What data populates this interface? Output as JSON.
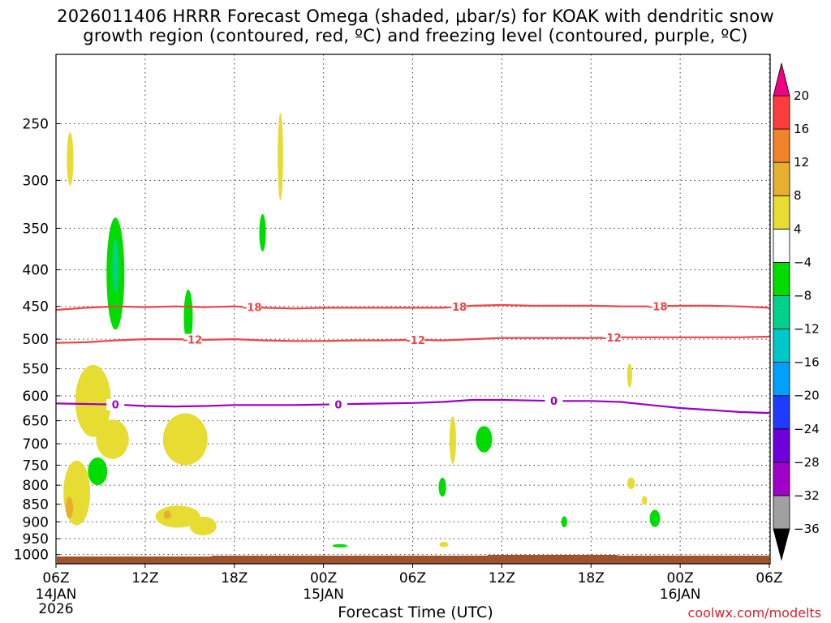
{
  "title_line1": "2026011406 HRRR Forecast Omega (shaded, μbar/s) for KOAK with dendritic snow",
  "title_line2": "growth region (contoured, red, ºC) and freezing level (contoured, purple, ºC)",
  "credit": "coolwx.com/modelts",
  "chart_data": {
    "type": "heatmap",
    "title": "2026011406 HRRR Forecast Omega (shaded, μbar/s) for KOAK with dendritic snow growth region (contoured, red, ºC) and freezing level (contoured, purple, ºC)",
    "xlabel": "Forecast Time (UTC)",
    "ylabel": "",
    "x_unit": "hours since 2026-01-14 06Z",
    "xlim": [
      0,
      48
    ],
    "ylim": [
      1030,
      200
    ],
    "y_scale": "log",
    "grid": true,
    "x_ticks": [
      {
        "x": 0,
        "label": "06Z",
        "sub1": "14JAN",
        "sub2": "2026"
      },
      {
        "x": 6,
        "label": "12Z",
        "sub1": "",
        "sub2": ""
      },
      {
        "x": 12,
        "label": "18Z",
        "sub1": "",
        "sub2": ""
      },
      {
        "x": 18,
        "label": "00Z",
        "sub1": "15JAN",
        "sub2": ""
      },
      {
        "x": 24,
        "label": "06Z",
        "sub1": "",
        "sub2": ""
      },
      {
        "x": 30,
        "label": "12Z",
        "sub1": "",
        "sub2": ""
      },
      {
        "x": 36,
        "label": "18Z",
        "sub1": "",
        "sub2": ""
      },
      {
        "x": 42,
        "label": "00Z",
        "sub1": "16JAN",
        "sub2": ""
      },
      {
        "x": 48,
        "label": "06Z",
        "sub1": "",
        "sub2": ""
      }
    ],
    "y_ticks": [
      250,
      300,
      350,
      400,
      450,
      500,
      550,
      600,
      650,
      700,
      750,
      800,
      850,
      900,
      950,
      1000
    ],
    "colorbar": {
      "levels": [
        -36,
        -32,
        -28,
        -24,
        -20,
        -16,
        -12,
        -8,
        -4,
        4,
        8,
        12,
        16,
        20
      ],
      "colors": [
        "#000000",
        "#a0a0a0",
        "#a000c8",
        "#6e00dc",
        "#1e3cff",
        "#00a0ff",
        "#00c8c8",
        "#00d28c",
        "#00dc00",
        "#ffffff",
        "#e6dc32",
        "#e6af2d",
        "#f08228",
        "#fa3c3c",
        "#f00082"
      ]
    },
    "omega_features": [
      {
        "x": 0.95,
        "p": 280,
        "dx": 0.22,
        "dp": 25,
        "value": 6
      },
      {
        "x": 15.1,
        "p": 278,
        "dx": 0.18,
        "dp": 42,
        "value": 6
      },
      {
        "x": 13.9,
        "p": 355,
        "dx": 0.22,
        "dp": 22,
        "value": -6
      },
      {
        "x": 4.0,
        "p": 405,
        "dx": 0.6,
        "dp": 80,
        "value": -6
      },
      {
        "x": 4.0,
        "p": 395,
        "dx": 0.2,
        "dp": 35,
        "value": -10
      },
      {
        "x": 8.9,
        "p": 465,
        "dx": 0.3,
        "dp": 42,
        "value": -6
      },
      {
        "x": 38.6,
        "p": 562,
        "dx": 0.15,
        "dp": 22,
        "value": 6
      },
      {
        "x": 2.5,
        "p": 610,
        "dx": 1.2,
        "dp": 75,
        "value": 6
      },
      {
        "x": 3.8,
        "p": 690,
        "dx": 1.1,
        "dp": 45,
        "value": 6
      },
      {
        "x": 8.7,
        "p": 690,
        "dx": 1.5,
        "dp": 60,
        "value": 6
      },
      {
        "x": 2.8,
        "p": 765,
        "dx": 0.65,
        "dp": 35,
        "value": -6
      },
      {
        "x": 26.7,
        "p": 692,
        "dx": 0.22,
        "dp": 55,
        "value": 6
      },
      {
        "x": 28.8,
        "p": 690,
        "dx": 0.55,
        "dp": 30,
        "value": -6
      },
      {
        "x": 1.4,
        "p": 820,
        "dx": 0.9,
        "dp": 90,
        "value": 6
      },
      {
        "x": 0.9,
        "p": 860,
        "dx": 0.25,
        "dp": 30,
        "value": 9
      },
      {
        "x": 8.2,
        "p": 885,
        "dx": 1.5,
        "dp": 32,
        "value": 6
      },
      {
        "x": 7.5,
        "p": 880,
        "dx": 0.25,
        "dp": 12,
        "value": 9
      },
      {
        "x": 9.9,
        "p": 912,
        "dx": 0.9,
        "dp": 28,
        "value": 6
      },
      {
        "x": 26.0,
        "p": 805,
        "dx": 0.25,
        "dp": 25,
        "value": -6
      },
      {
        "x": 19.1,
        "p": 972,
        "dx": 0.5,
        "dp": 5,
        "value": -6
      },
      {
        "x": 26.1,
        "p": 968,
        "dx": 0.3,
        "dp": 8,
        "value": 6
      },
      {
        "x": 34.2,
        "p": 900,
        "dx": 0.2,
        "dp": 16,
        "value": -6
      },
      {
        "x": 38.7,
        "p": 795,
        "dx": 0.25,
        "dp": 15,
        "value": 6
      },
      {
        "x": 39.6,
        "p": 840,
        "dx": 0.18,
        "dp": 12,
        "value": 6
      },
      {
        "x": 40.3,
        "p": 890,
        "dx": 0.35,
        "dp": 25,
        "value": -6
      }
    ],
    "contours": [
      {
        "name": "",
        "level": -18,
        "color": "#ee4444",
        "x": [
          0,
          2,
          4,
          6,
          8,
          10,
          12,
          14,
          16,
          18,
          20,
          22,
          24,
          26,
          28,
          30,
          32,
          34,
          36,
          38,
          40,
          42,
          44,
          46,
          48
        ],
        "p": [
          455,
          452,
          450,
          451,
          450,
          451,
          450,
          452,
          453,
          452,
          452,
          452,
          452,
          452,
          449,
          448,
          449,
          449,
          449,
          450,
          450,
          449,
          449,
          450,
          452
        ],
        "label_x": [
          13.2,
          27.0,
          40.5
        ]
      },
      {
        "name": "",
        "level": -12,
        "color": "#ee4444",
        "x": [
          0,
          2,
          4,
          6,
          8,
          10,
          12,
          14,
          16,
          18,
          20,
          22,
          24,
          26,
          28,
          30,
          32,
          34,
          36,
          38,
          40,
          42,
          44,
          46,
          48
        ],
        "p": [
          506,
          505,
          502,
          500,
          500,
          501,
          500,
          502,
          503,
          503,
          502,
          502,
          501,
          502,
          500,
          498,
          498,
          498,
          498,
          497,
          497,
          497,
          497,
          497,
          496
        ],
        "label_x": [
          9.2,
          24.2,
          37.4
        ]
      },
      {
        "name": "",
        "level": 0,
        "color": "#9a00c8",
        "x": [
          0,
          2,
          4,
          6,
          8,
          10,
          12,
          14,
          16,
          18,
          20,
          22,
          24,
          26,
          28,
          30,
          32,
          34,
          36,
          38,
          40,
          42,
          44,
          46,
          48
        ],
        "p": [
          615,
          616,
          617,
          620,
          621,
          620,
          618,
          618,
          618,
          617,
          616,
          615,
          614,
          612,
          608,
          608,
          609,
          610,
          610,
          612,
          618,
          624,
          628,
          632,
          634
        ],
        "label_x": [
          4.0,
          19.0,
          33.5
        ]
      }
    ]
  }
}
